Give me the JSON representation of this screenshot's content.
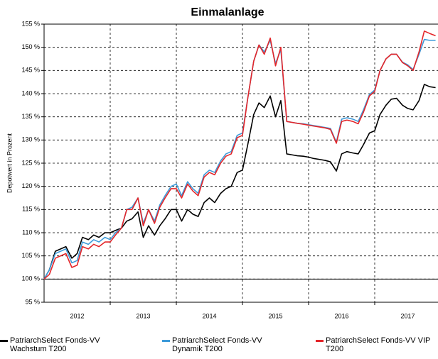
{
  "chart_data": {
    "type": "line",
    "title": "Einmalanlage",
    "y_label": "Depotwert in Prozent",
    "xlim": [
      2012,
      2017.957
    ],
    "xticks": [
      {
        "value": 2012.5,
        "label": "2012"
      },
      {
        "value": 2013.5,
        "label": "2013"
      },
      {
        "value": 2014.5,
        "label": "2014"
      },
      {
        "value": 2015.5,
        "label": "2015"
      },
      {
        "value": 2016.5,
        "label": "2016"
      },
      {
        "value": 2017.5,
        "label": "2017"
      }
    ],
    "xgrid": [
      2013,
      2014,
      2015,
      2016,
      2017
    ],
    "ylim": [
      95,
      155
    ],
    "yticks": [
      {
        "value": 95,
        "label": "95 %"
      },
      {
        "value": 100,
        "label": "100 %"
      },
      {
        "value": 105,
        "label": "105 %"
      },
      {
        "value": 110,
        "label": "110 %"
      },
      {
        "value": 115,
        "label": "115 %"
      },
      {
        "value": 120,
        "label": "120 %"
      },
      {
        "value": 125,
        "label": "125 %"
      },
      {
        "value": 130,
        "label": "130 %"
      },
      {
        "value": 135,
        "label": "135 %"
      },
      {
        "value": 140,
        "label": "140 %"
      },
      {
        "value": 145,
        "label": "145 %"
      },
      {
        "value": 150,
        "label": "150 %"
      },
      {
        "value": 155,
        "label": "155 %"
      }
    ],
    "grid": true,
    "reference_line": 100,
    "legend": "bottom",
    "x": [
      2012.0,
      2012.08,
      2012.17,
      2012.25,
      2012.33,
      2012.42,
      2012.5,
      2012.58,
      2012.67,
      2012.75,
      2012.83,
      2012.92,
      2013.0,
      2013.08,
      2013.17,
      2013.25,
      2013.33,
      2013.42,
      2013.5,
      2013.58,
      2013.67,
      2013.75,
      2013.83,
      2013.92,
      2014.0,
      2014.08,
      2014.17,
      2014.25,
      2014.33,
      2014.42,
      2014.5,
      2014.58,
      2014.67,
      2014.75,
      2014.83,
      2014.92,
      2015.0,
      2015.08,
      2015.17,
      2015.25,
      2015.33,
      2015.42,
      2015.5,
      2015.58,
      2015.67,
      2015.75,
      2015.83,
      2015.92,
      2016.0,
      2016.08,
      2016.17,
      2016.25,
      2016.33,
      2016.42,
      2016.5,
      2016.58,
      2016.67,
      2016.75,
      2016.83,
      2016.92,
      2017.0,
      2017.08,
      2017.17,
      2017.25,
      2017.33,
      2017.42,
      2017.5,
      2017.58,
      2017.67,
      2017.75,
      2017.83,
      2017.92
    ],
    "series": [
      {
        "name": "PatriarchSelect Fonds-VV Wachstum T200",
        "color": "#000000",
        "values": [
          100,
          102,
          106,
          106.5,
          107,
          104.5,
          105.5,
          109,
          108.5,
          109.5,
          109,
          110,
          110,
          110.5,
          111,
          112.5,
          113,
          114.5,
          109,
          111.5,
          109.5,
          111.5,
          113,
          115,
          115,
          112.5,
          115,
          114,
          113.5,
          116.5,
          117.5,
          116.5,
          118.5,
          119.5,
          120,
          123,
          123.5,
          129,
          135.5,
          138,
          137,
          139.5,
          135,
          138.5,
          127,
          126.8,
          126.6,
          126.5,
          126.3,
          126,
          125.8,
          125.6,
          125.3,
          123.3,
          127,
          127.5,
          127.2,
          127,
          129,
          131.5,
          132,
          135.5,
          137.5,
          138.8,
          139,
          137.5,
          136.8,
          136.5,
          138.5,
          142,
          141.5,
          141.3
        ]
      },
      {
        "name": "PatriarchSelect Fonds-VV Dynamik T200",
        "color": "#3d9ad9",
        "values": [
          100,
          102,
          105.5,
          106,
          106.5,
          103.5,
          104,
          108,
          107.5,
          108.5,
          108,
          109,
          108.5,
          110,
          111,
          115,
          115.5,
          117.5,
          112,
          115,
          112.5,
          116,
          118,
          120,
          120.5,
          118,
          121,
          119.5,
          118.5,
          122.5,
          123.5,
          123,
          125.5,
          127,
          127.5,
          131,
          131.5,
          139,
          147,
          150.5,
          149,
          151.5,
          146.5,
          149.5,
          134,
          133.8,
          133.6,
          133.5,
          133.3,
          133.1,
          132.9,
          132.7,
          132.5,
          129.5,
          134.5,
          134.8,
          134.5,
          134,
          136.5,
          139.8,
          140.8,
          145,
          147.5,
          148.5,
          148.5,
          146.8,
          146.2,
          145.2,
          148.5,
          151.7,
          151.5,
          151.5
        ]
      },
      {
        "name": "PatriarchSelect Fonds-VV VIP T200",
        "color": "#e4262a",
        "values": [
          100,
          101,
          104.5,
          105,
          105.5,
          102.5,
          103,
          107,
          106.5,
          107.5,
          107,
          108,
          108,
          109.5,
          111,
          115,
          115,
          117.5,
          111.5,
          115,
          112,
          115.5,
          117.5,
          119.5,
          119.5,
          117.5,
          120.5,
          119,
          118,
          122,
          123,
          122.5,
          125,
          126.5,
          127,
          130.5,
          131,
          139,
          147,
          150.5,
          148.5,
          152,
          146,
          150,
          134,
          133.8,
          133.6,
          133.4,
          133.2,
          133,
          132.8,
          132.6,
          132.3,
          129.3,
          134,
          134.3,
          134,
          133.5,
          136,
          139.5,
          140.5,
          145,
          147.5,
          148.5,
          148.5,
          146.7,
          146,
          145,
          149,
          153.5,
          153,
          152.5
        ]
      }
    ]
  }
}
